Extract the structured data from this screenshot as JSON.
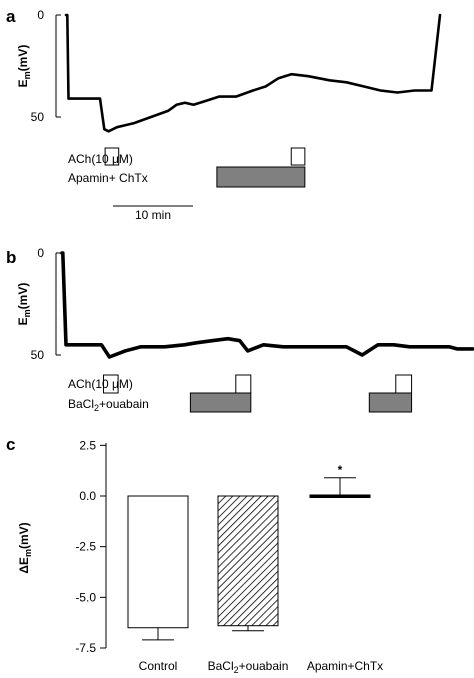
{
  "panels": {
    "a": {
      "letter": "a",
      "y_tick_top": "0",
      "y_tick_bottom": "50",
      "y_label_main": "E",
      "y_label_sub": "m",
      "y_label_unit": "(mV)",
      "ach_label": "ACh(10 μM)",
      "blocker_label": "Apamin+ ChTx",
      "scalebar_label": "10 min"
    },
    "b": {
      "letter": "b",
      "y_tick_top": "0",
      "y_tick_bottom": "50",
      "y_label_main": "E",
      "y_label_sub": "m",
      "y_label_unit": "(mV)",
      "ach_label": "ACh(10 μM)",
      "blocker_main": "BaCl",
      "blocker_sub": "2",
      "blocker_rest": "+ouabain"
    },
    "c": {
      "letter": "c",
      "y_label_prefix": "ΔE",
      "y_label_sub": "m",
      "y_label_unit": "(mV)",
      "significance": "*",
      "cat2_main": "BaCl",
      "cat2_sub": "2",
      "cat2_rest": "+ouabain"
    }
  },
  "chart_data": [
    {
      "type": "line",
      "panel": "a",
      "ylabel": "Em(mV)",
      "ylim": [
        0,
        50
      ],
      "y_inverted": true,
      "series": [
        {
          "x_min": [
            0,
            0.3,
            0.6,
            1,
            4,
            8,
            9,
            10,
            12,
            16,
            20,
            24,
            26,
            28,
            30,
            33,
            36,
            40,
            44,
            47,
            50,
            53,
            57,
            62,
            66,
            70,
            74,
            78,
            82,
            86,
            88
          ],
          "y_mV": [
            0,
            0,
            41,
            41,
            41,
            41,
            56,
            57,
            55,
            53,
            50,
            47,
            44,
            43,
            44,
            42,
            40,
            40,
            37,
            35,
            31,
            29,
            30,
            32,
            33,
            35,
            37,
            38,
            37,
            37,
            0
          ]
        }
      ],
      "markers": [
        {
          "label": "ACh(10 μM)",
          "start_min": 9.2,
          "end_min": 12.4
        },
        {
          "label": "ACh(10 μM)",
          "start_min": 53.0,
          "end_min": 56.2
        },
        {
          "label": "Apamin+ ChTx",
          "start_min": 35.5,
          "end_min": 56.2
        }
      ],
      "scale_bar": {
        "label": "10 min",
        "minutes": 10
      }
    },
    {
      "type": "line",
      "panel": "b",
      "ylabel": "Em(mV)",
      "ylim": [
        0,
        50
      ],
      "y_inverted": true,
      "series": [
        {
          "x_min": [
            0,
            0.2,
            1,
            4,
            7,
            10,
            12,
            16,
            20,
            26,
            31,
            34,
            38,
            42,
            45,
            47,
            51,
            56,
            60,
            64,
            68,
            72,
            74,
            76,
            80,
            84,
            88,
            92,
            95,
            98,
            100,
            102,
            104
          ],
          "y_mV": [
            0,
            0,
            45,
            45,
            45,
            45,
            51,
            48,
            46,
            46,
            45,
            44,
            43,
            42,
            43,
            48,
            45,
            46,
            46,
            46,
            46,
            46,
            48,
            50,
            45,
            45,
            46,
            46,
            46,
            46,
            47,
            47,
            47
          ]
        }
      ],
      "markers": [
        {
          "label": "ACh(10 μM)",
          "start_min": 10.5,
          "end_min": 14.2
        },
        {
          "label": "ACh(10 μM)",
          "start_min": 44.0,
          "end_min": 47.8
        },
        {
          "label": "ACh(10 μM)",
          "start_min": 84.5,
          "end_min": 88.5
        },
        {
          "label": "BaCl2+ouabain",
          "start_min": 32.5,
          "end_min": 47.8
        },
        {
          "label": "BaCl2+ouabain",
          "start_min": 77.8,
          "end_min": 88.5
        }
      ]
    },
    {
      "type": "bar",
      "panel": "c",
      "categories": [
        "Control",
        "BaCl2+ouabain",
        "Apamin+ChTx"
      ],
      "values": [
        -6.5,
        -6.4,
        0.05
      ],
      "errors": [
        0.6,
        0.25,
        0.85
      ],
      "error_direction": [
        "down",
        "down",
        "up"
      ],
      "fills": [
        "white",
        "hatched",
        "white"
      ],
      "ylabel": "ΔEm(mV)",
      "ylim": [
        -7.5,
        2.5
      ],
      "y_ticks": [
        2.5,
        0.0,
        -2.5,
        -5.0,
        -7.5
      ],
      "y_tick_labels": [
        "2.5",
        "0.0",
        "-2.5",
        "-5.0",
        "-7.5"
      ],
      "significance_marker": {
        "category": "Apamin+ChTx",
        "label": "*"
      }
    }
  ]
}
